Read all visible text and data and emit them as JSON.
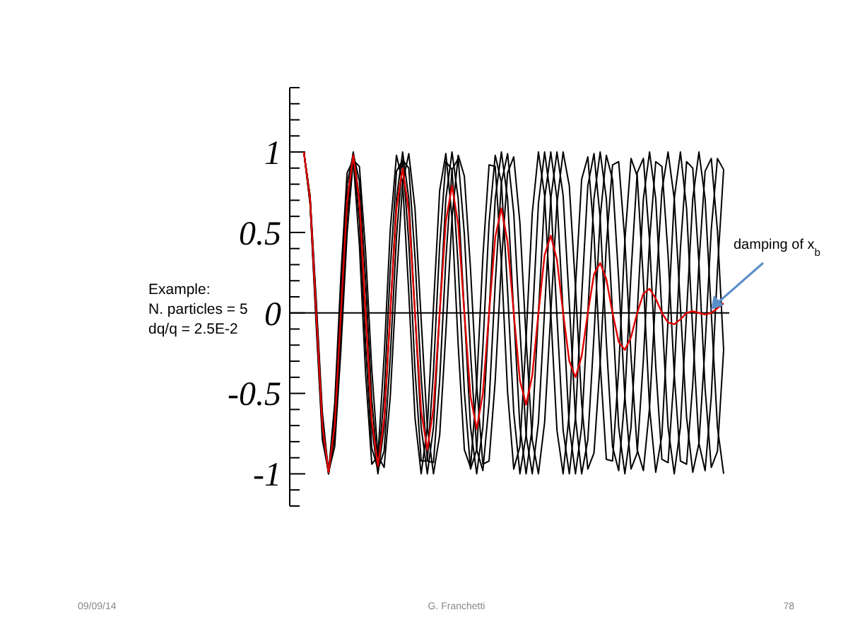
{
  "chart_data": {
    "type": "line",
    "ylim": [
      -1.2,
      1.4
    ],
    "tick_labels": "y",
    "marker": "none",
    "line_style": "solid",
    "categories": [
      null,
      null,
      null,
      null,
      null,
      null,
      null,
      null,
      null,
      null,
      null,
      null,
      null,
      null,
      null,
      null,
      null,
      null,
      null,
      null,
      null,
      null,
      null,
      null,
      null,
      null,
      null,
      null,
      null,
      null,
      null,
      null,
      null,
      null,
      null,
      null,
      null,
      null,
      null,
      null,
      null,
      null,
      null,
      null,
      null,
      null,
      null,
      null,
      null,
      null,
      null,
      null,
      null,
      null,
      null,
      null,
      null,
      null,
      null,
      null,
      null,
      null,
      null,
      null,
      null,
      null,
      null,
      null,
      null
    ],
    "yticks": [
      {
        "value": -1.2,
        "label": null
      },
      {
        "value": -1.1,
        "label": null
      },
      -1,
      {
        "value": -0.9,
        "label": null
      },
      {
        "value": -0.8,
        "label": null
      },
      {
        "value": -0.7,
        "label": null
      },
      {
        "value": -0.6,
        "label": null
      },
      -0.5,
      {
        "value": -0.4,
        "label": null
      },
      {
        "value": -0.3,
        "label": null
      },
      {
        "value": -0.2,
        "label": null
      },
      {
        "value": -0.1,
        "label": null
      },
      0,
      {
        "value": 0.1,
        "label": null
      },
      {
        "value": 0.2,
        "label": null
      },
      {
        "value": 0.3,
        "label": null
      },
      {
        "value": 0.4,
        "label": null
      },
      0.5,
      {
        "value": 0.6,
        "label": null
      },
      {
        "value": 0.7,
        "label": null
      },
      {
        "value": 0.8,
        "label": null
      },
      {
        "value": 0.9,
        "label": null
      },
      1,
      {
        "value": 1.1,
        "label": null
      },
      {
        "value": 1.2,
        "label": null
      },
      {
        "value": 1.3,
        "label": null
      },
      {
        "value": 1.4,
        "label": null
      }
    ],
    "series": [
      {
        "color": "#000000",
        "values": [
          1,
          0.73,
          0.08,
          -0.62,
          -0.99,
          -0.83,
          -0.23,
          0.49,
          0.95,
          0.91,
          0.38,
          -0.35,
          -0.89,
          -0.96,
          -0.52,
          0.2,
          0.81,
          0.99,
          0.65,
          -0.04,
          -0.71,
          -1,
          -0.76,
          -0.12,
          0.59,
          0.98,
          0.85,
          0.27,
          -0.45,
          -0.94,
          -0.92,
          -0.42,
          0.31,
          0.87,
          0.97,
          0.56,
          -0.16,
          -0.79,
          -1,
          -0.68,
          0,
          0.68,
          1,
          0.79,
          0.16,
          -0.56,
          -0.97,
          -0.87,
          -0.31,
          0.42,
          0.92,
          0.94,
          0.45,
          -0.27,
          -0.85,
          -0.98,
          -0.59,
          0.12,
          0.76,
          1,
          0.71,
          0.04,
          -0.65,
          -0.99,
          -0.81,
          -0.2,
          0.52,
          0.96,
          0.89
        ]
      },
      {
        "color": "#000000",
        "values": [
          1,
          0.72,
          0.04,
          -0.66,
          -1,
          -0.77,
          -0.12,
          0.6,
          0.99,
          0.82,
          0.2,
          -0.54,
          -0.97,
          -0.86,
          -0.27,
          0.47,
          0.95,
          0.9,
          0.35,
          -0.4,
          -0.92,
          -0.93,
          -0.42,
          0.33,
          0.89,
          0.96,
          0.49,
          -0.25,
          -0.85,
          -0.98,
          -0.56,
          0.18,
          0.81,
          0.99,
          0.62,
          -0.1,
          -0.76,
          -1,
          -0.68,
          0.02,
          0.71,
          1,
          0.73,
          0.06,
          -0.65,
          -1,
          -0.79,
          -0.14,
          0.59,
          0.98,
          0.83,
          0.21,
          -0.52,
          -0.97,
          -0.87,
          -0.29,
          0.45,
          0.94,
          0.91,
          0.36,
          -0.38,
          -0.92,
          -0.94,
          -0.44,
          0.31,
          0.88,
          0.96,
          0.51,
          -0.23
        ]
      },
      {
        "color": "#000000",
        "values": [
          1,
          0.71,
          0,
          -0.71,
          -1,
          -0.71,
          0,
          0.71,
          1,
          0.71,
          0,
          -0.71,
          -1,
          -0.71,
          0,
          0.71,
          1,
          0.71,
          0,
          -0.71,
          -1,
          -0.71,
          0,
          0.71,
          1,
          0.71,
          0,
          -0.71,
          -1,
          -0.71,
          0,
          0.71,
          1,
          0.71,
          0,
          -0.71,
          -1,
          -0.71,
          0,
          0.71,
          1,
          0.71,
          0,
          -0.71,
          -1,
          -0.71,
          0,
          0.71,
          1,
          0.71,
          0,
          -0.71,
          -1,
          -0.71,
          0,
          0.71,
          1,
          0.71,
          0,
          -0.71,
          -1,
          -0.71,
          0,
          0.71,
          1,
          0.71,
          0,
          -0.71,
          -1
        ]
      },
      {
        "color": "#000000",
        "values": [
          1,
          0.69,
          -0.04,
          -0.75,
          -1,
          -0.63,
          0.12,
          0.8,
          0.99,
          0.57,
          -0.2,
          -0.84,
          -0.97,
          -0.51,
          0.27,
          0.88,
          0.95,
          0.44,
          -0.35,
          -0.92,
          -0.92,
          -0.36,
          0.42,
          0.94,
          0.89,
          0.29,
          -0.49,
          -0.97,
          -0.85,
          -0.21,
          0.56,
          0.98,
          0.81,
          0.14,
          -0.62,
          -1,
          -0.76,
          -0.06,
          0.68,
          1,
          0.71,
          -0.02,
          -0.73,
          -1,
          -0.65,
          0.1,
          0.79,
          0.99,
          0.59,
          -0.18,
          -0.83,
          -0.98,
          -0.52,
          0.25,
          0.87,
          0.96,
          0.45,
          -0.33,
          -0.91,
          -0.93,
          -0.38,
          0.4,
          0.94,
          0.9,
          0.31,
          -0.47,
          -0.96,
          -0.86,
          -0.23
        ]
      },
      {
        "color": "#000000",
        "values": [
          1,
          0.68,
          -0.08,
          -0.79,
          -0.99,
          -0.56,
          0.23,
          0.87,
          0.95,
          0.42,
          -0.38,
          -0.94,
          -0.89,
          -0.27,
          0.52,
          0.98,
          0.81,
          0.12,
          -0.65,
          -1,
          -0.71,
          0.04,
          0.76,
          0.99,
          0.59,
          -0.2,
          -0.85,
          -0.96,
          -0.45,
          0.35,
          0.92,
          0.91,
          0.31,
          -0.49,
          -0.97,
          -0.83,
          -0.16,
          0.62,
          1,
          0.73,
          0,
          -0.73,
          -1,
          -0.62,
          0.16,
          0.83,
          0.97,
          0.49,
          -0.31,
          -0.91,
          -0.92,
          -0.35,
          0.45,
          0.96,
          0.85,
          0.2,
          -0.59,
          -0.99,
          -0.76,
          -0.04,
          0.71,
          1,
          0.65,
          -0.12,
          -0.81,
          -0.98,
          -0.52,
          0.27,
          0.89
        ]
      },
      {
        "color": "#e00000",
        "values": [
          1,
          0.71,
          0,
          -0.7,
          -0.99,
          -0.7,
          0,
          0.69,
          0.98,
          0.69,
          0,
          -0.67,
          -0.95,
          -0.66,
          0,
          0.65,
          0.9,
          0.63,
          0,
          -0.61,
          -0.85,
          -0.59,
          0,
          0.57,
          0.79,
          0.55,
          0,
          -0.52,
          -0.72,
          -0.5,
          0,
          0.47,
          0.65,
          0.44,
          0,
          -0.42,
          -0.57,
          -0.39,
          0,
          0.36,
          0.48,
          0.33,
          0,
          -0.3,
          -0.4,
          -0.27,
          0,
          0.24,
          0.31,
          0.21,
          0,
          -0.18,
          -0.23,
          -0.15,
          0,
          0.12,
          0.15,
          0.09,
          0,
          -0.06,
          -0.07,
          -0.04,
          0,
          0.01,
          0,
          -0.01,
          0,
          0.03,
          0.06
        ]
      }
    ],
    "annotations": [
      "Example:",
      "N. particles = 5",
      "dq/q = 2.5E-2",
      "damping of  x$_{b}$",
      "09/09/14",
      "G. Franchetti",
      "78"
    ]
  }
}
